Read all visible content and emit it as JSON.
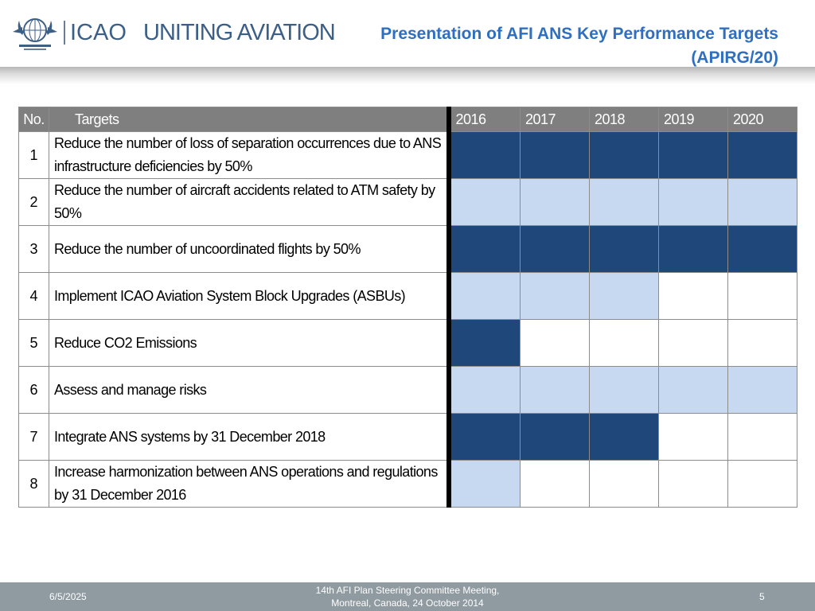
{
  "header": {
    "logo_text": "ICAO",
    "tagline": "UNITING AVIATION",
    "title_line1": "Presentation of AFI ANS Key Performance Targets",
    "title_line2": "(APIRG/20)",
    "colors": {
      "brand_blue": "#3c5f86",
      "title_blue": "#2e6fc0"
    }
  },
  "table": {
    "col_no": "No.",
    "col_targets": "Targets",
    "years": [
      "2016",
      "2017",
      "2018",
      "2019",
      "2020"
    ],
    "rows": [
      {
        "no": "1",
        "target": "Reduce the number of loss of separation occurrences due to ANS infrastructure deficiencies by 50%",
        "cells": [
          "dark",
          "dark",
          "dark",
          "dark",
          "dark"
        ]
      },
      {
        "no": "2",
        "target": "Reduce the number of aircraft accidents related to ATM safety by 50%",
        "cells": [
          "light",
          "light",
          "light",
          "light",
          "light"
        ]
      },
      {
        "no": "3",
        "target": "Reduce the number of uncoordinated flights by 50%",
        "cells": [
          "dark",
          "dark",
          "dark",
          "dark",
          "dark"
        ]
      },
      {
        "no": "4",
        "target": "Implement ICAO Aviation System Block Upgrades (ASBUs)",
        "cells": [
          "light",
          "light",
          "light",
          "empty",
          "empty"
        ]
      },
      {
        "no": "5",
        "target": "Reduce CO2 Emissions",
        "cells": [
          "dark",
          "empty",
          "empty",
          "empty",
          "empty"
        ]
      },
      {
        "no": "6",
        "target": "Assess and manage risks",
        "cells": [
          "light",
          "light",
          "light",
          "light",
          "light"
        ]
      },
      {
        "no": "7",
        "target": "Integrate ANS systems by 31 December 2018",
        "cells": [
          "dark",
          "dark",
          "dark",
          "empty",
          "empty"
        ]
      },
      {
        "no": "8",
        "target": "Increase harmonization between ANS operations and regulations by 31 December 2016",
        "cells": [
          "light",
          "empty",
          "empty",
          "empty",
          "empty"
        ]
      }
    ],
    "colors": {
      "dark": "#1f477a",
      "light": "#c6d9f1",
      "header": "#7f7f7f"
    }
  },
  "footer": {
    "date": "6/5/2025",
    "meeting_line1": "14th AFI Plan Steering Committee Meeting,",
    "meeting_line2": "Montreal, Canada, 24 October 2014",
    "page": "5"
  }
}
